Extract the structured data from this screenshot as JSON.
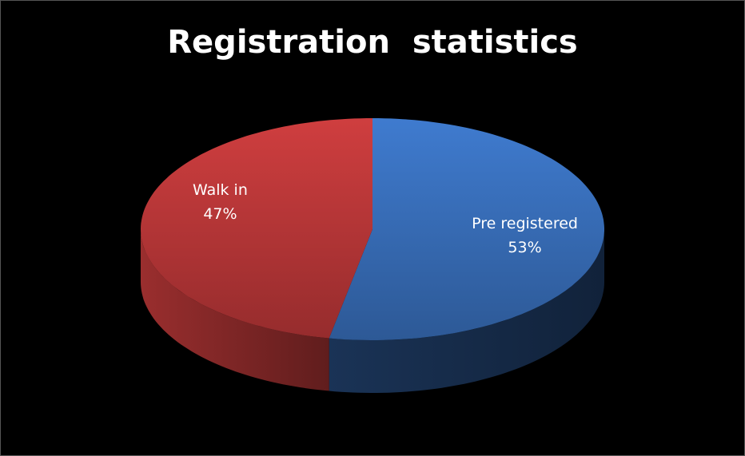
{
  "chart_data": {
    "type": "pie",
    "title": "Registration  statistics",
    "categories": [
      "Pre registered",
      "Walk in"
    ],
    "values": [
      53,
      47
    ],
    "value_labels": [
      "53%",
      "47%"
    ],
    "colors": [
      "#3a72c0",
      "#c0393a"
    ]
  }
}
